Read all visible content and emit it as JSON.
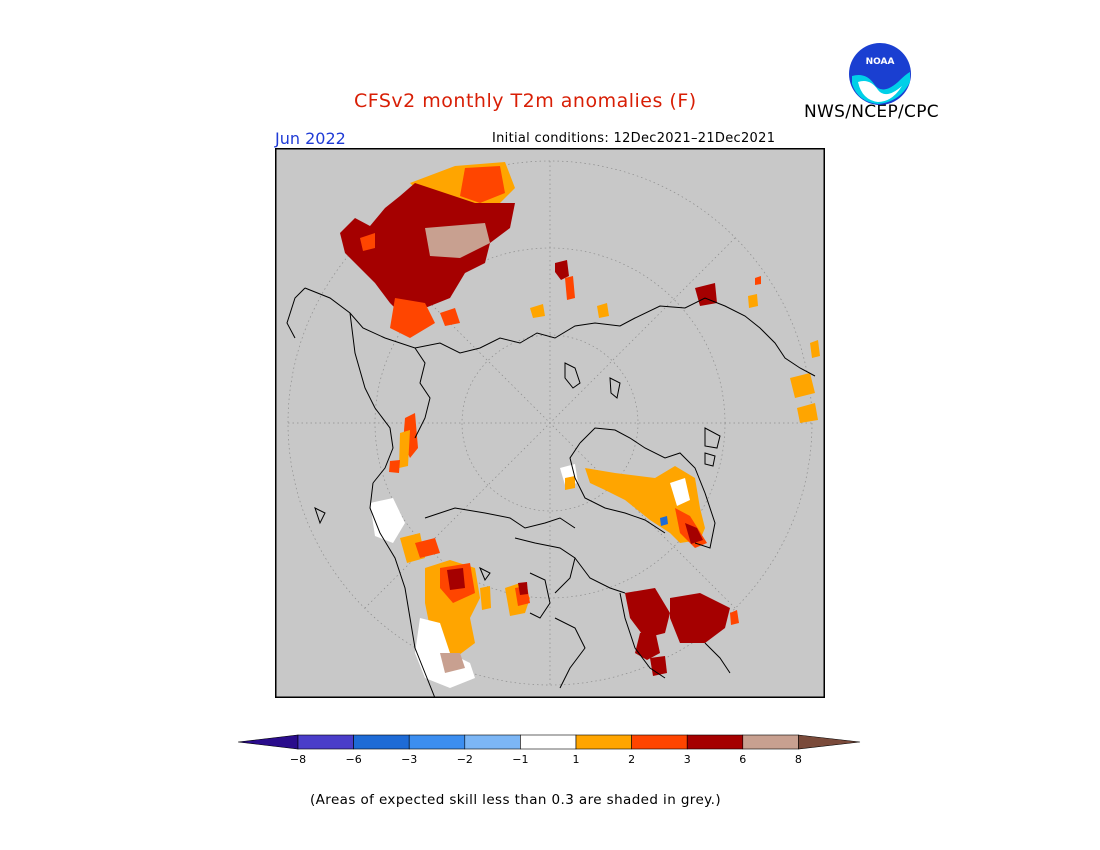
{
  "header": {
    "title": "CFSv2 monthly T2m anomalies (F)",
    "agency": "NWS/NCEP/CPC",
    "month": "Jun 2022",
    "initial_conditions": "Initial conditions: 12Dec2021–21Dec2021"
  },
  "logo": {
    "icon": "noaa-logo-icon",
    "text": "NOAA"
  },
  "map": {
    "projection": "north-polar-stereographic",
    "background_color": "#c8c8c8",
    "coastline_color": "#000000"
  },
  "colorbar": {
    "ticks": [
      "−8",
      "−6",
      "−3",
      "−2",
      "−1",
      "1",
      "2",
      "3",
      "6",
      "8"
    ],
    "colors": {
      "below_-8": "#2a0c8c",
      "-8_to_-6": "#4a3dc9",
      "-6_to_-3": "#1e6bd6",
      "-3_to_-2": "#3c8ef0",
      "-2_to_-1": "#7cb6f5",
      "-1_to_1": "#ffffff",
      "1_to_2": "#ffa500",
      "2_to_3": "#ff4500",
      "3_to_6": "#a50000",
      "6_to_8": "#c8a090",
      "above_8": "#7a4a3a"
    }
  },
  "footnote": "(Areas of expected skill less than 0.3 are shaded in grey.)"
}
